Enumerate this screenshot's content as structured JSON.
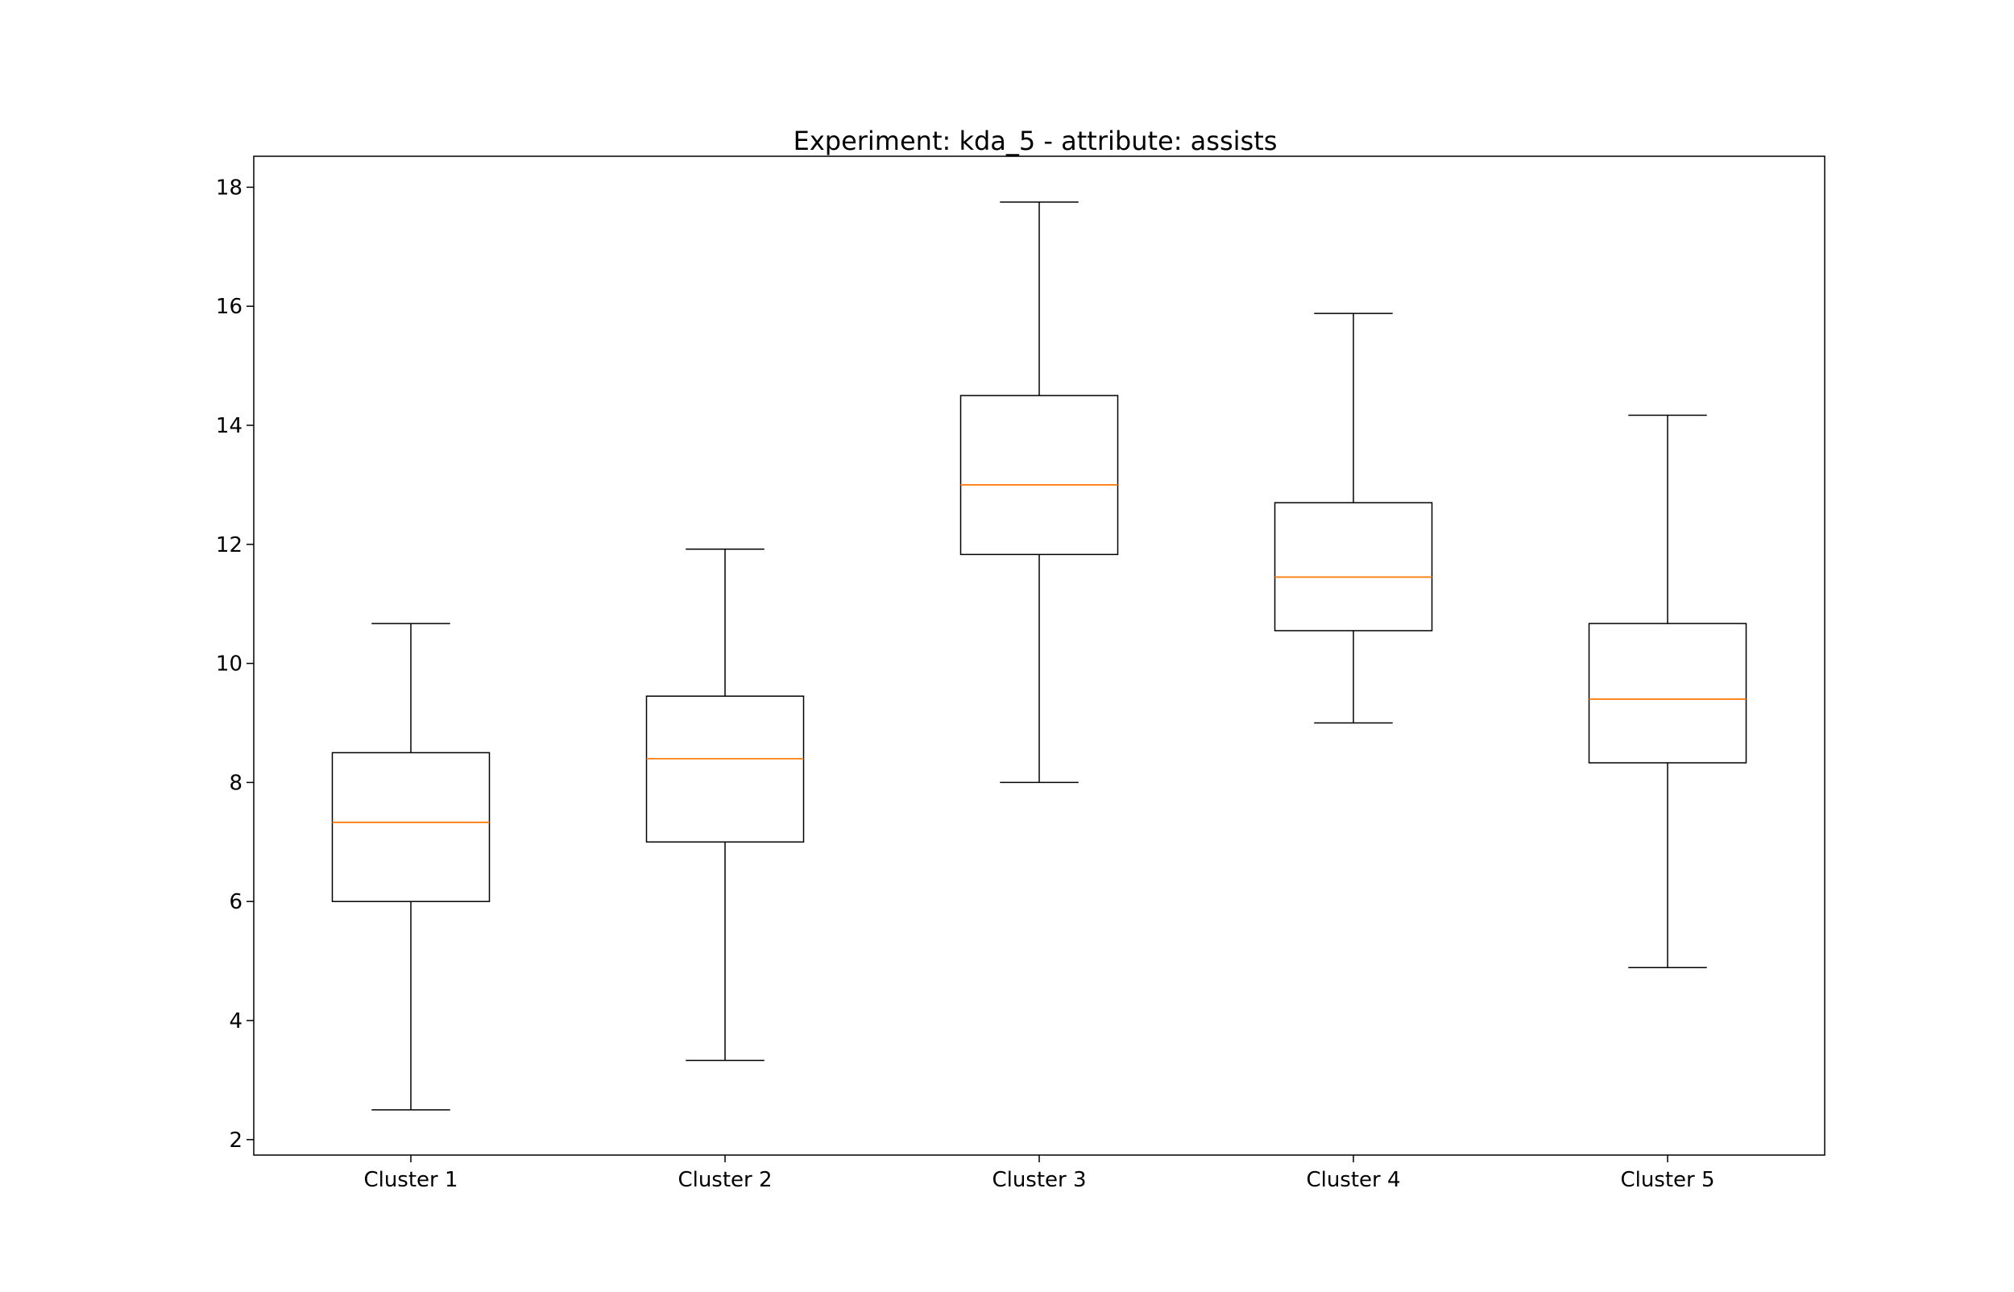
{
  "chart_data": {
    "type": "box",
    "title": "Experiment: kda_5 - attribute: assists",
    "xlabel": "",
    "ylabel": "",
    "categories": [
      "Cluster 1",
      "Cluster 2",
      "Cluster 3",
      "Cluster 4",
      "Cluster 5"
    ],
    "boxes": [
      {
        "category": "Cluster 1",
        "whisker_low": 2.5,
        "q1": 6.0,
        "median": 7.33,
        "q3": 8.5,
        "whisker_high": 10.67
      },
      {
        "category": "Cluster 2",
        "whisker_low": 3.33,
        "q1": 7.0,
        "median": 8.4,
        "q3": 9.45,
        "whisker_high": 11.92
      },
      {
        "category": "Cluster 3",
        "whisker_low": 8.0,
        "q1": 11.83,
        "median": 13.0,
        "q3": 14.5,
        "whisker_high": 17.75
      },
      {
        "category": "Cluster 4",
        "whisker_low": 9.0,
        "q1": 10.55,
        "median": 11.45,
        "q3": 12.7,
        "whisker_high": 15.88
      },
      {
        "category": "Cluster 5",
        "whisker_low": 4.89,
        "q1": 8.33,
        "median": 9.4,
        "q3": 10.67,
        "whisker_high": 14.17
      }
    ],
    "y_ticks": [
      2,
      4,
      6,
      8,
      10,
      12,
      14,
      16,
      18
    ],
    "ylim": [
      1.74,
      18.52
    ],
    "grid": false,
    "colors": {
      "box": "#000000",
      "median": "#ff7f0e",
      "frame": "#000000"
    }
  }
}
